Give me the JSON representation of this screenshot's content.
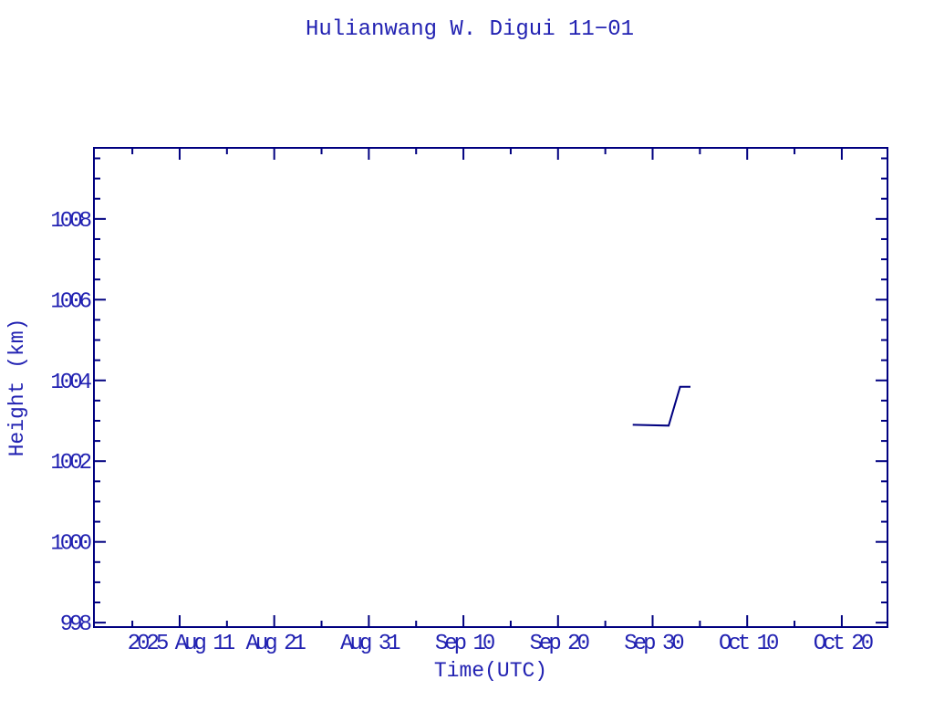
{
  "chart_data": {
    "type": "line",
    "title": "Hulianwang W. Digui 11−01",
    "xlabel": "Time(UTC)",
    "ylabel": "Height (km)",
    "x_unit": "days since 2025-08-01 00:00 UTC",
    "x_start_date": "2025-08-01",
    "xlim": [
      0.94,
      84.83
    ],
    "ylim": [
      997.89,
      1009.76
    ],
    "grid": false,
    "legend": null,
    "x_major_ticks": [
      {
        "value": 10,
        "label": "2025 Aug 11"
      },
      {
        "value": 20,
        "label": "Aug 21"
      },
      {
        "value": 30,
        "label": "Aug 31"
      },
      {
        "value": 40,
        "label": "Sep 10"
      },
      {
        "value": 50,
        "label": "Sep 20"
      },
      {
        "value": 60,
        "label": "Sep 30"
      },
      {
        "value": 70,
        "label": "Oct 10"
      },
      {
        "value": 80,
        "label": "Oct 20"
      }
    ],
    "x_minor_ticks": [
      5,
      15,
      25,
      35,
      45,
      55,
      65,
      75
    ],
    "y_major_ticks": [
      {
        "value": 998,
        "label": "998"
      },
      {
        "value": 1000,
        "label": "1000"
      },
      {
        "value": 1002,
        "label": "1002"
      },
      {
        "value": 1004,
        "label": "1004"
      },
      {
        "value": 1006,
        "label": "1006"
      },
      {
        "value": 1008,
        "label": "1008"
      }
    ],
    "y_minor_step": 0.5,
    "series": [
      {
        "name": "height",
        "points": [
          {
            "day": 57.9,
            "utc": "2025 Sep 27.9",
            "height_km": 1002.9
          },
          {
            "day": 61.7,
            "utc": "2025 Oct 01.7",
            "height_km": 1002.88
          },
          {
            "day": 62.9,
            "utc": "2025 Oct 02.9",
            "height_km": 1003.84
          },
          {
            "day": 64.0,
            "utc": "2025 Oct 04.0",
            "height_km": 1003.84
          }
        ]
      }
    ],
    "colors": {
      "background": "#ffffff",
      "axis": "#000080",
      "line": "#000080",
      "text": "#2222b2"
    }
  }
}
